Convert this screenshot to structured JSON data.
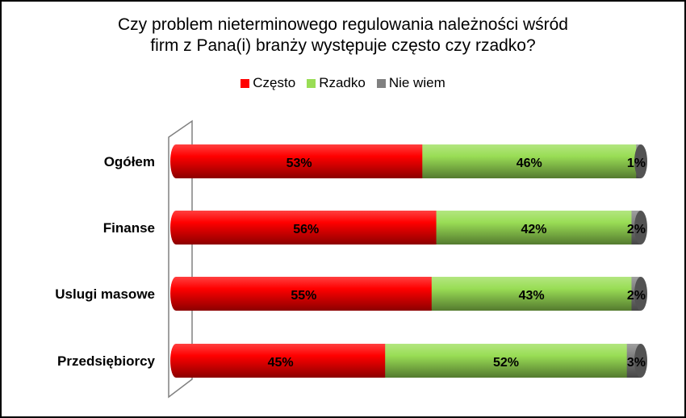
{
  "chart_data": {
    "type": "bar",
    "orientation": "horizontal",
    "stacked": true,
    "percent": true,
    "title_lines": [
      "Czy problem nieterminowego regulowania należności wśród",
      "firm z Pana(i) branży występuje często czy rzadko?"
    ],
    "categories": [
      "Ogółem",
      "Finanse",
      "Uslugi masowe",
      "Przedsiębiorcy"
    ],
    "series": [
      {
        "name": "Często",
        "values": [
          53,
          56,
          55,
          45
        ],
        "labels": [
          "53%",
          "56%",
          "55%",
          "45%"
        ],
        "color": "#ff0000"
      },
      {
        "name": "Rzadko",
        "values": [
          46,
          42,
          43,
          52
        ],
        "labels": [
          "46%",
          "42%",
          "43%",
          "52%"
        ],
        "color": "#99dd55"
      },
      {
        "name": "Nie wiem",
        "values": [
          1,
          2,
          2,
          3
        ],
        "labels": [
          "1%",
          "2%",
          "2%",
          "3%"
        ],
        "color": "#808080"
      }
    ],
    "xlim": [
      0,
      100
    ],
    "legend_position": "top",
    "grid": false
  }
}
